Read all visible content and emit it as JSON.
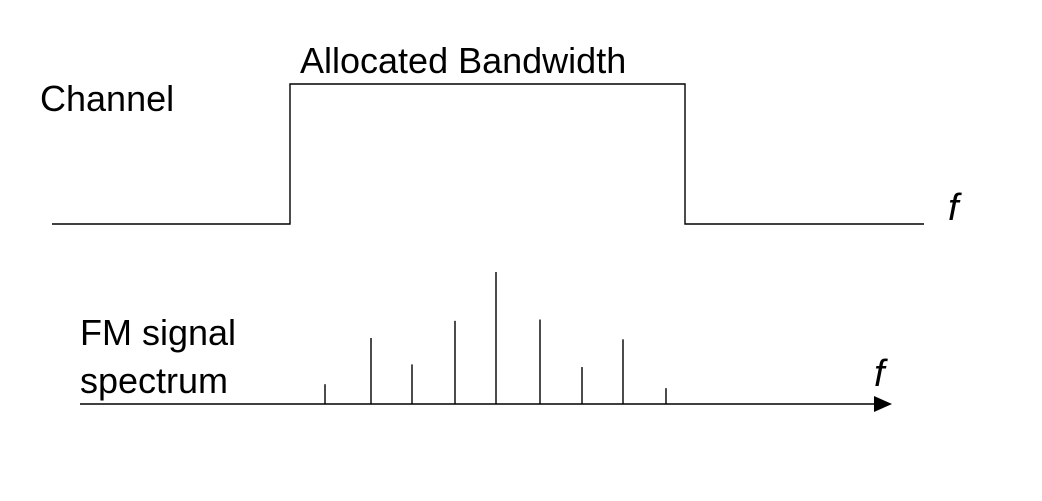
{
  "labels": {
    "channel": "Channel",
    "allocated_bandwidth": "Allocated Bandwidth",
    "fm_signal_line1": "FM signal",
    "fm_signal_line2": "spectrum",
    "freq_symbol_top": "f",
    "freq_symbol_bottom": "f"
  },
  "spectrum": {
    "relative_heights": [
      0.15,
      0.5,
      0.3,
      0.63,
      1.0,
      0.64,
      0.28,
      0.49,
      0.12
    ]
  },
  "colors": {
    "stroke": "#000000",
    "background": "#ffffff"
  }
}
